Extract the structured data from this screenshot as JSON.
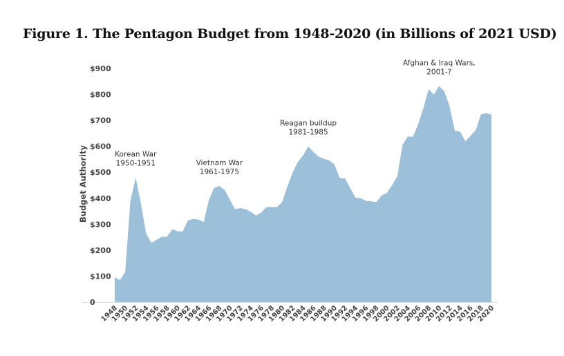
{
  "chart_data": {
    "type": "area",
    "title": "Figure 1. The Pentagon Budget from 1948-2020 (in Billions of 2021 USD)",
    "xlabel": "",
    "ylabel": "Budget Authority",
    "ylim": [
      0,
      900
    ],
    "yticks": [
      0,
      100,
      200,
      300,
      400,
      500,
      600,
      700,
      800,
      900
    ],
    "ytick_labels": [
      "0",
      "$100",
      "$200",
      "$300",
      "$400",
      "$500",
      "$600",
      "$700",
      "$800",
      "$900"
    ],
    "xtick_labels": [
      "1948",
      "1950",
      "1952",
      "1954",
      "1956",
      "1958",
      "1960",
      "1962",
      "1964",
      "1966",
      "1968",
      "1970",
      "1972",
      "1974",
      "1976",
      "1978",
      "1980",
      "1982",
      "1984",
      "1986",
      "1988",
      "1990",
      "1992",
      "1994",
      "1996",
      "1998",
      "2000",
      "2002",
      "2004",
      "2006",
      "2008",
      "2010",
      "2012",
      "2014",
      "2016",
      "2018",
      "2020"
    ],
    "x_start": 1948,
    "values": [
      95,
      85,
      115,
      390,
      480,
      380,
      265,
      228,
      240,
      252,
      252,
      280,
      273,
      272,
      315,
      320,
      318,
      308,
      395,
      440,
      447,
      432,
      395,
      358,
      362,
      358,
      348,
      333,
      345,
      366,
      366,
      366,
      385,
      445,
      500,
      540,
      565,
      600,
      577,
      560,
      552,
      545,
      530,
      478,
      476,
      440,
      402,
      400,
      390,
      388,
      385,
      410,
      420,
      450,
      485,
      605,
      638,
      637,
      685,
      748,
      820,
      800,
      832,
      812,
      755,
      660,
      657,
      620,
      640,
      663,
      723,
      728,
      722
    ],
    "fill_color": "#9dc0da",
    "grid": false,
    "annotations": [
      {
        "lines": [
          "Korean War",
          "1950-1951"
        ],
        "year": 1952,
        "value": 480
      },
      {
        "lines": [
          "Vietnam  War",
          "1961-1975"
        ],
        "year": 1968,
        "value": 447
      },
      {
        "lines": [
          "Reagan buildup",
          "1981-1985"
        ],
        "year": 1985,
        "value": 600
      },
      {
        "lines": [
          "Afghan & Iraq Wars,",
          "2001-?"
        ],
        "year": 2010,
        "value": 832
      }
    ]
  }
}
